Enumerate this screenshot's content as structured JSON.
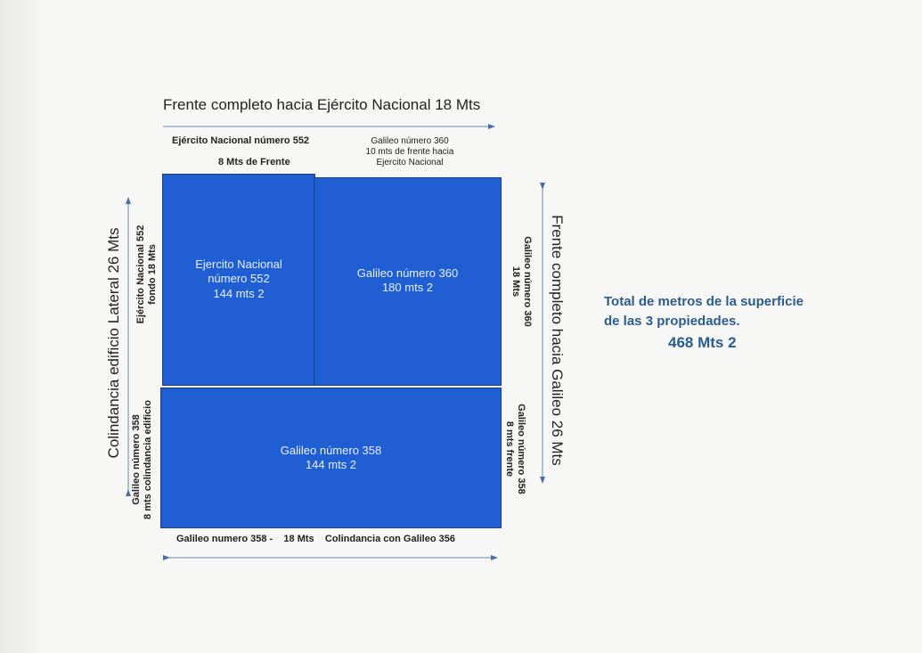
{
  "top": {
    "title": "Frente completo hacia Ejército Nacional 18 Mts",
    "left_label_1": "Ejército Nacional número 552",
    "left_label_2": "8 Mts de Frente",
    "right_label": [
      "Galileo número 360",
      "10 mts de frente hacia",
      "Ejercito Nacional"
    ]
  },
  "lots": [
    {
      "lines": [
        "Ejercito Nacional",
        "número  552",
        "144 mts 2"
      ]
    },
    {
      "lines": [
        "Galileo número 360",
        "180 mts 2"
      ]
    },
    {
      "lines": [
        "Galileo número 358",
        "144 mts 2"
      ]
    }
  ],
  "left": {
    "title": "Colindancia edificio Lateral 26 Mts",
    "upper": [
      "Ejército Nacional 552",
      "fondo 18 Mts"
    ],
    "lower": [
      "Galileo número 358",
      "8 mts colindancia edificio"
    ]
  },
  "right": {
    "title": "Frente completo hacia Galileo  26 Mts",
    "upper": [
      "Galileo número 360",
      "18 Mts"
    ],
    "lower": [
      "Galileo número 358",
      "8 mts frente"
    ]
  },
  "bottom": {
    "label": "Galileo numero 358 -    18 Mts    Colindancia con Galileo 356"
  },
  "total": {
    "line1": "Total de metros de la superficie",
    "line2": "de las 3 propiedades.",
    "value": "468 Mts 2"
  },
  "colors": {
    "lot_fill": "#1f5fd3",
    "arrow": "#4a6fa5",
    "total_text": "#2b5c8c"
  }
}
